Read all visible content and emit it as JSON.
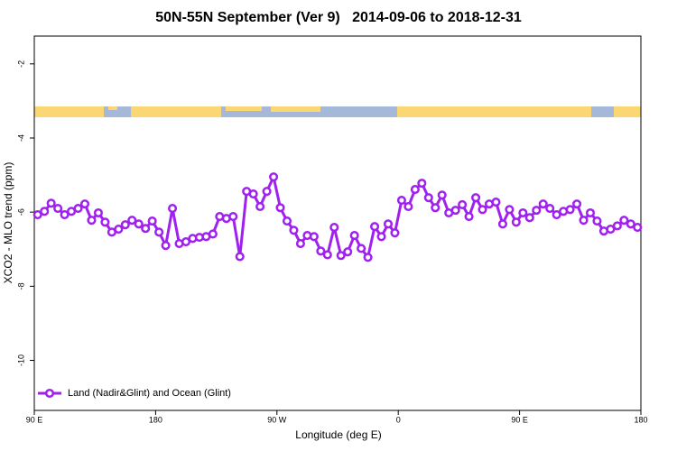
{
  "chart_data": {
    "type": "line",
    "title": "50N-55N September (Ver 9)   2014-09-06 to 2018-12-31",
    "xlabel": "Longitude (deg E)",
    "ylabel": "XCO2 - MLO trend (ppm)",
    "x": [
      92.5,
      97.5,
      102.5,
      107.5,
      112.5,
      117.5,
      122.5,
      127.5,
      132.5,
      137.5,
      142.5,
      147.5,
      152.5,
      157.5,
      162.5,
      167.5,
      172.5,
      177.5,
      182.5,
      187.5,
      192.5,
      197.5,
      202.5,
      207.5,
      212.5,
      217.5,
      222.5,
      227.5,
      232.5,
      237.5,
      242.5,
      247.5,
      252.5,
      257.5,
      262.5,
      267.5,
      272.5,
      277.5,
      282.5,
      287.5,
      292.5,
      297.5,
      302.5,
      307.5,
      312.5,
      317.5,
      322.5,
      327.5,
      332.5,
      337.5,
      342.5,
      347.5,
      352.5,
      357.5,
      362.5,
      367.5,
      372.5,
      377.5,
      382.5,
      387.5,
      392.5,
      397.5,
      402.5,
      407.5,
      412.5,
      417.5,
      422.5,
      427.5,
      432.5,
      437.5,
      442.5,
      447.5,
      452.5,
      457.5,
      462.5,
      467.5,
      472.5,
      477.5,
      482.5,
      487.5,
      492.5,
      497.5,
      502.5,
      507.5,
      512.5,
      517.5,
      522.5,
      527.5,
      532.5,
      537.5
    ],
    "series": [
      {
        "name": "Land (Nadir&Glint) and Ocean (Glint)",
        "color": "#a020f0",
        "values": [
          -6.07,
          -5.98,
          -5.76,
          -5.9,
          -6.07,
          -5.98,
          -5.9,
          -5.78,
          -6.22,
          -6.02,
          -6.27,
          -6.54,
          -6.46,
          -6.34,
          -6.22,
          -6.32,
          -6.44,
          -6.24,
          -6.54,
          -6.9,
          -5.9,
          -6.85,
          -6.8,
          -6.71,
          -6.68,
          -6.66,
          -6.59,
          -6.12,
          -6.17,
          -6.12,
          -7.2,
          -5.44,
          -5.51,
          -5.85,
          -5.44,
          -5.05,
          -5.88,
          -6.24,
          -6.49,
          -6.85,
          -6.63,
          -6.66,
          -7.05,
          -7.15,
          -6.41,
          -7.17,
          -7.07,
          -6.63,
          -6.98,
          -7.22,
          -6.39,
          -6.66,
          -6.32,
          -6.56,
          -5.68,
          -5.85,
          -5.39,
          -5.22,
          -5.61,
          -5.88,
          -5.54,
          -6.02,
          -5.95,
          -5.8,
          -6.12,
          -5.61,
          -5.93,
          -5.78,
          -5.73,
          -6.32,
          -5.93,
          -6.27,
          -6.02,
          -6.15,
          -5.95,
          -5.78,
          -5.9,
          -6.07,
          -5.98,
          -5.93,
          -5.78,
          -6.22,
          -6.02,
          -6.24,
          -6.51,
          -6.46,
          -6.37,
          -6.22,
          -6.32,
          -6.41
        ]
      }
    ],
    "xlim": [
      90,
      540
    ],
    "xticks": [
      {
        "value": 90,
        "label": "90 E"
      },
      180,
      {
        "value": 270,
        "label": "90 W"
      },
      {
        "value": 360,
        "label": "0"
      },
      {
        "value": 450,
        "label": "90 E"
      },
      {
        "value": 540,
        "label": "180"
      }
    ],
    "ylim": [
      -11.35,
      -1.25
    ],
    "yticks": [
      -2,
      -4,
      -6,
      -8,
      -10
    ],
    "legend": "lower left"
  }
}
